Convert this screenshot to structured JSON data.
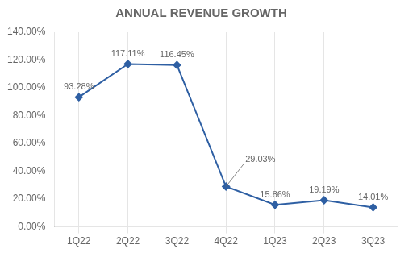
{
  "chart_data": {
    "type": "line",
    "title": "ANNUAL REVENUE GROWTH",
    "categories": [
      "1Q22",
      "2Q22",
      "3Q22",
      "4Q22",
      "1Q23",
      "2Q23",
      "3Q23"
    ],
    "values": [
      93.28,
      117.11,
      116.45,
      29.03,
      15.86,
      19.19,
      14.01
    ],
    "value_labels": [
      "93.28%",
      "117.11%",
      "116.45%",
      "29.03%",
      "15.86%",
      "19.19%",
      "14.01%"
    ],
    "data_labels": true,
    "color": "#2E5FA3",
    "marker": "diamond",
    "ylim": [
      0,
      140
    ],
    "yticks": [
      {
        "value": 0,
        "label": "0.00%"
      },
      {
        "value": 20,
        "label": "20.00%"
      },
      {
        "value": 40,
        "label": "40.00%"
      },
      {
        "value": 60,
        "label": "60.00%"
      },
      {
        "value": 80,
        "label": "80.00%"
      },
      {
        "value": 100,
        "label": "100.00%"
      },
      {
        "value": 120,
        "label": "120.00%"
      },
      {
        "value": 140,
        "label": "140.00%"
      }
    ],
    "grid": "x"
  }
}
